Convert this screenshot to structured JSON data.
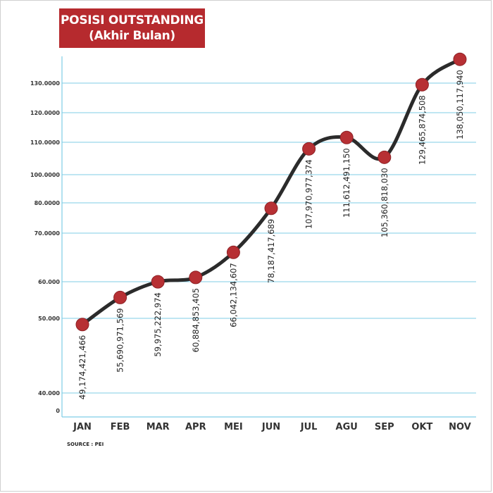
{
  "chart_data": {
    "type": "line",
    "title": "POSISI OUTSTANDING",
    "subtitle": "(Akhir Bulan)",
    "categories": [
      "JAN",
      "FEB",
      "MAR",
      "APR",
      "MEI",
      "JUN",
      "JUL",
      "AGU",
      "SEP",
      "OKT",
      "NOV"
    ],
    "values": [
      49174421466,
      55690971569,
      59975222974,
      60884853405,
      66042134607,
      78187417689,
      107970977374,
      111612491150,
      105360818030,
      129465874508,
      138050117940
    ],
    "data_labels": [
      "49,174,421,466",
      "55,690,971,569",
      "59,975,222,974",
      "60,884,853,405",
      "66,042,134,607",
      "78,187,417,689",
      "107,970,977,374",
      "111,612,491,150",
      "105,360,818,030",
      "129,465,874,508",
      "138,050,117,940"
    ],
    "y_ticks": [
      {
        "label": "130.0000",
        "value": 130000000000
      },
      {
        "label": "120.0000",
        "value": 120000000000
      },
      {
        "label": "110.0000",
        "value": 110000000000
      },
      {
        "label": "100.0000",
        "value": 100000000000
      },
      {
        "label": "80.0000",
        "value": 80000000000
      },
      {
        "label": "70.0000",
        "value": 70000000000
      },
      {
        "label": "60.000",
        "value": 60000000000
      },
      {
        "label": "50.000",
        "value": 50000000000
      },
      {
        "label": "40.000",
        "value": 40000000000
      },
      {
        "label": "0",
        "value": 0
      }
    ],
    "xlabel": "",
    "ylabel": "",
    "grid": true,
    "line_color": "#2b2b2b",
    "marker_color": "#b73034",
    "grid_color": "#7fcde6",
    "title_bg_color": "#b62a2e"
  },
  "source": "SOURCE : PEI"
}
